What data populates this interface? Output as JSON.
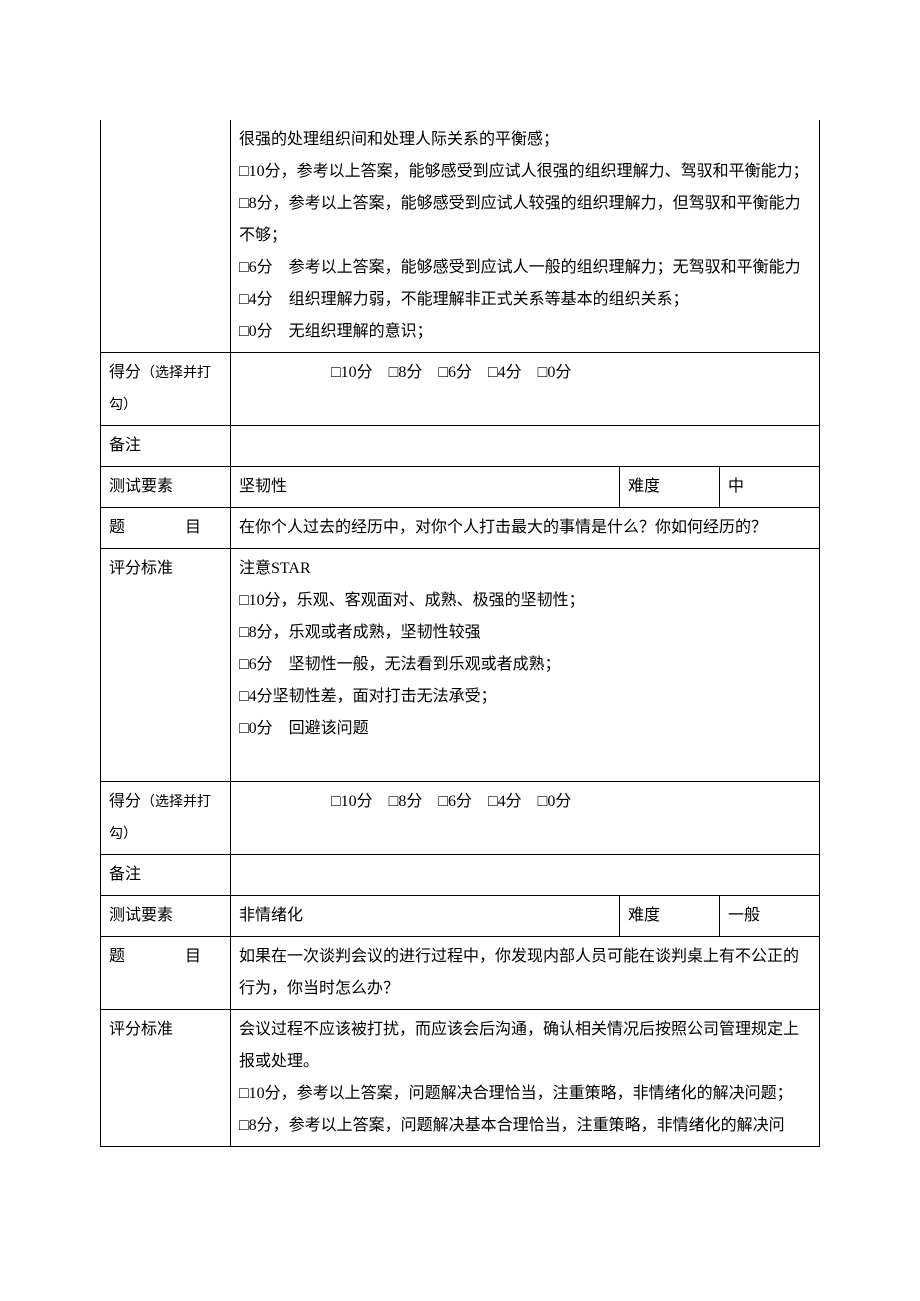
{
  "labels": {
    "score_select": "得分",
    "score_select_note": "（选择并打勾）",
    "notes": "备注",
    "test_element": "测试要素",
    "difficulty": "难度",
    "question_a": "题",
    "question_b": "目",
    "criteria": "评分标准"
  },
  "score_options_text": "□10分　□8分　□6分　□4分　□0分",
  "section1": {
    "criteria_lines": [
      "很强的处理组织间和处理人际关系的平衡感；",
      "□10分，参考以上答案，能够感受到应试人很强的组织理解力、驾驭和平衡能力；",
      "□8分，参考以上答案，能够感受到应试人较强的组织理解力，但驾驭和平衡能力不够；",
      "□6分　参考以上答案，能够感受到应试人一般的组织理解力；无驾驭和平衡能力",
      "□4分　组织理解力弱，不能理解非正式关系等基本的组织关系；",
      "□0分　无组织理解的意识；"
    ]
  },
  "section2": {
    "element": "坚韧性",
    "difficulty": "中",
    "question": "在你个人过去的经历中，对你个人打击最大的事情是什么？你如何经历的？",
    "criteria_lines": [
      "注意STAR",
      "□10分，乐观、客观面对、成熟、极强的坚韧性；",
      "□8分，乐观或者成熟，坚韧性较强",
      "□6分　坚韧性一般，无法看到乐观或者成熟；",
      "□4分坚韧性差，面对打击无法承受；",
      "□0分　回避该问题",
      " "
    ]
  },
  "section3": {
    "element": "非情绪化",
    "difficulty": "一般",
    "question": "如果在一次谈判会议的进行过程中，你发现内部人员可能在谈判桌上有不公正的行为，你当时怎么办？",
    "criteria_lines": [
      "会议过程不应该被打扰，而应该会后沟通，确认相关情况后按照公司管理规定上报或处理。",
      "□10分，参考以上答案，问题解决合理恰当，注重策略，非情绪化的解决问题；",
      "□8分，参考以上答案，问题解决基本合理恰当，注重策略，非情绪化的解决问"
    ]
  }
}
